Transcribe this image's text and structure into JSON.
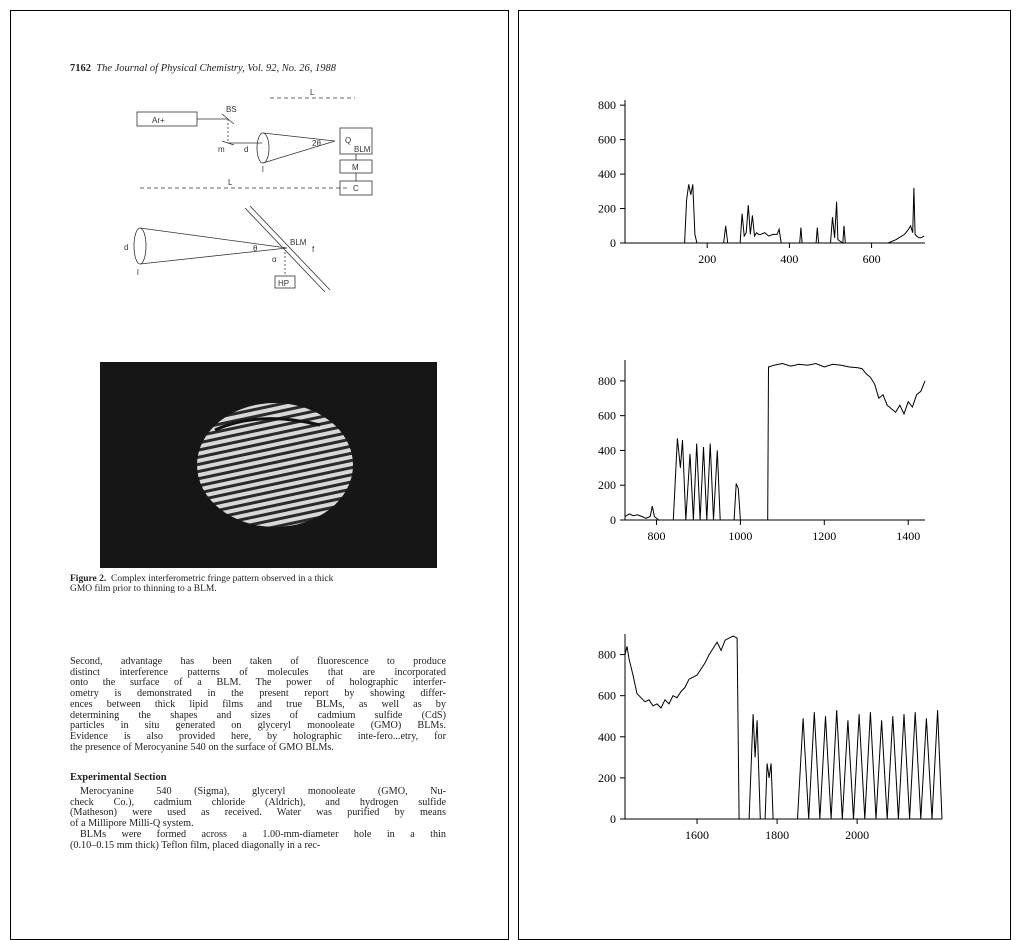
{
  "document": {
    "header": {
      "page": "7162",
      "journal": "The Journal of Physical Chemistry, Vol. 92, No. 26, 1988"
    },
    "diagram_labels": {
      "laser": "Ar+",
      "beam_splitter": "BS",
      "distance_top": "L",
      "diameter_top": "d",
      "angle_top": "2θ",
      "sample_q": "Q",
      "blm_top": "BLM",
      "mirror": "m",
      "lens_top": "l",
      "monitor": "M",
      "camera": "C",
      "distance_bottom": "L",
      "diameter_bottom": "d",
      "angle_bottom": "θ",
      "blm_bottom": "BLM",
      "focus": "f",
      "alpha": "α",
      "plate": "HP",
      "lens_bottom": "l"
    },
    "figure2": {
      "label": "Figure 2.",
      "caption_lines": [
        "Complex interferometric fringe pattern observed in a thick",
        "GMO film prior to thinning to a BLM."
      ]
    },
    "paragraph1": [
      "Second, advantage has been taken of fluorescence to produce",
      "distinct interference patterns of molecules that are incorporated",
      "onto the surface of a BLM.  The power of holographic interfer-",
      "ometry is demonstrated in the present report by showing differ-",
      "ences between thick lipid films and true BLMs, as well as by",
      "determining the shapes and sizes of cadmium sulfide (CdS)",
      "particles in situ generated on glyceryl monooleate (GMO) BLMs.",
      "Evidence is also provided here, by holographic inte-fero...etry, for",
      "the presence of Merocyanine 540 on the surface of GMO BLMs."
    ],
    "section_heading": "Experimental Section",
    "paragraph2": [
      "Merocyanine 540 (Sigma), glyceryl monooleate (GMO, Nu-",
      "check Co.), cadmium chloride (Aldrich), and hydrogen sulfide",
      "(Matheson) were used as received.  Water was purified by means",
      "of a Millipore Milli-Q system."
    ],
    "paragraph3": [
      "BLMs were formed across a 1.00-mm-diameter hole in a thin",
      "(0.10–0.15 mm thick) Teflon film, placed diagonally in a rec-"
    ]
  },
  "chart_data": [
    {
      "type": "line",
      "color": "#000000",
      "x": [
        0,
        145,
        150,
        155,
        160,
        165,
        170,
        175,
        240,
        245,
        250,
        280,
        285,
        290,
        295,
        300,
        305,
        310,
        315,
        320,
        325,
        330,
        340,
        350,
        360,
        370,
        375,
        380,
        385,
        425,
        428,
        431,
        465,
        468,
        471,
        500,
        505,
        510,
        515,
        518,
        530,
        533,
        536,
        560,
        640,
        660,
        680,
        690,
        695,
        700,
        703,
        706,
        710,
        715,
        720,
        728
      ],
      "values": [
        0,
        0,
        250,
        340,
        280,
        340,
        50,
        0,
        0,
        100,
        0,
        0,
        170,
        40,
        60,
        220,
        50,
        160,
        40,
        60,
        50,
        50,
        60,
        40,
        50,
        50,
        80,
        0,
        0,
        0,
        90,
        0,
        0,
        90,
        0,
        0,
        150,
        30,
        240,
        20,
        0,
        100,
        0,
        0,
        0,
        20,
        50,
        80,
        100,
        60,
        320,
        50,
        40,
        30,
        30,
        40
      ],
      "xlim": [
        0,
        730
      ],
      "ylim": [
        0,
        830
      ],
      "xticks": [
        200,
        400,
        600
      ],
      "yticks": [
        0,
        200,
        400,
        600,
        800
      ]
    },
    {
      "type": "line",
      "color": "#000000",
      "x": [
        725,
        735,
        745,
        755,
        765,
        775,
        785,
        790,
        795,
        805,
        840,
        850,
        857,
        862,
        870,
        880,
        888,
        896,
        904,
        912,
        920,
        928,
        936,
        945,
        952,
        985,
        990,
        995,
        1000,
        1065,
        1067,
        1080,
        1100,
        1120,
        1140,
        1160,
        1180,
        1200,
        1220,
        1240,
        1260,
        1280,
        1290,
        1300,
        1310,
        1320,
        1330,
        1340,
        1350,
        1360,
        1370,
        1380,
        1390,
        1400,
        1410,
        1420,
        1430,
        1440
      ],
      "values": [
        20,
        35,
        25,
        30,
        20,
        10,
        20,
        80,
        20,
        0,
        0,
        470,
        300,
        460,
        0,
        380,
        0,
        440,
        0,
        420,
        0,
        440,
        0,
        400,
        0,
        0,
        210,
        180,
        0,
        0,
        880,
        890,
        900,
        885,
        895,
        890,
        900,
        880,
        895,
        890,
        880,
        875,
        870,
        840,
        820,
        780,
        700,
        720,
        660,
        640,
        620,
        660,
        610,
        680,
        650,
        720,
        740,
        800
      ],
      "xlim": [
        725,
        1440
      ],
      "ylim": [
        0,
        920
      ],
      "xticks": [
        800,
        1000,
        1200,
        1400
      ],
      "yticks": [
        0,
        200,
        400,
        600,
        800
      ]
    },
    {
      "type": "line",
      "color": "#000000",
      "x": [
        1420,
        1425,
        1430,
        1440,
        1450,
        1460,
        1470,
        1480,
        1490,
        1500,
        1510,
        1520,
        1530,
        1540,
        1550,
        1560,
        1570,
        1580,
        1600,
        1620,
        1630,
        1640,
        1650,
        1660,
        1670,
        1680,
        1690,
        1700,
        1705,
        1730,
        1740,
        1745,
        1750,
        1758,
        1770,
        1775,
        1780,
        1785,
        1790,
        1851,
        1865,
        1879,
        1893,
        1907,
        1921,
        1935,
        1949,
        1963,
        1977,
        1991,
        2005,
        2019,
        2033,
        2047,
        2061,
        2075,
        2089,
        2103,
        2117,
        2131,
        2145,
        2159,
        2173,
        2187,
        2201,
        2212
      ],
      "values": [
        800,
        840,
        780,
        700,
        610,
        590,
        570,
        580,
        550,
        560,
        540,
        580,
        560,
        600,
        590,
        620,
        640,
        680,
        700,
        760,
        800,
        830,
        860,
        820,
        870,
        880,
        890,
        880,
        0,
        0,
        510,
        300,
        480,
        0,
        0,
        270,
        200,
        270,
        0,
        0,
        490,
        0,
        520,
        0,
        500,
        0,
        530,
        0,
        480,
        0,
        510,
        0,
        520,
        0,
        480,
        0,
        500,
        0,
        510,
        0,
        520,
        0,
        490,
        0,
        530,
        0
      ],
      "xlim": [
        1420,
        2212
      ],
      "ylim": [
        0,
        900
      ],
      "xticks": [
        1600,
        1800,
        2000
      ],
      "yticks": [
        0,
        200,
        400,
        600,
        800
      ]
    }
  ]
}
